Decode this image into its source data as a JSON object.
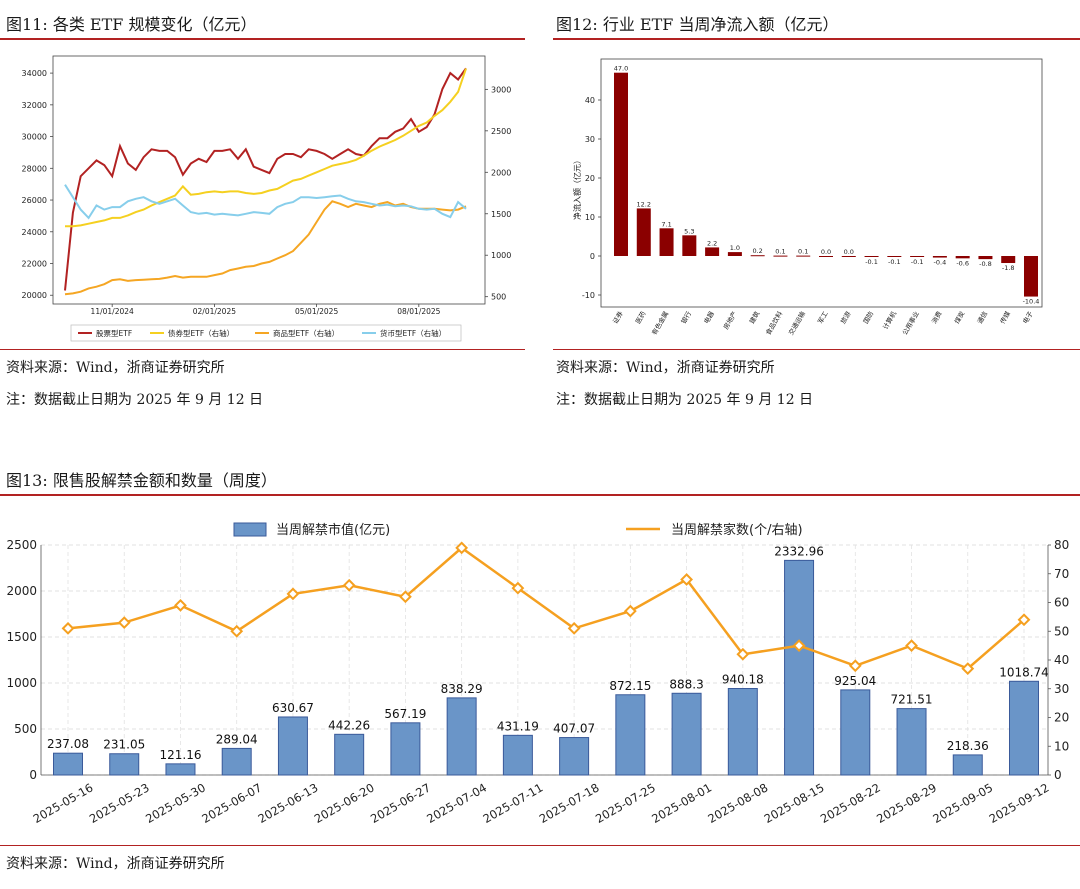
{
  "fig11": {
    "title": "图11:  各类 ETF 规模变化（亿元）",
    "source": "资料来源：Wind，浙商证券研究所",
    "note": "注：数据截止日期为 2025 年 9 月 12 日"
  },
  "fig12": {
    "title": "图12:  行业 ETF 当周净流入额（亿元）",
    "source": "资料来源：Wind，浙商证券研究所",
    "note": "注：数据截止日期为 2025 年 9 月 12 日"
  },
  "fig13": {
    "title": "图13:  限售股解禁金额和数量（周度）",
    "source": "资料来源：Wind，浙商证券研究所"
  },
  "colors": {
    "brand_red": "#b22222",
    "equity": "#b22222",
    "bond": "#f5d020",
    "commodity": "#f5a623",
    "money": "#87ceeb",
    "bar_red": "#8b0000",
    "bar_blue": "#6a95c8",
    "line_orange": "#f5a020"
  },
  "chart_data": [
    {
      "id": "fig11",
      "type": "line",
      "x": [
        "2024-09-20",
        "2024-09-27",
        "2024-10-04",
        "2024-10-11",
        "2024-10-18",
        "2024-10-25",
        "2024-11-01",
        "2024-11-08",
        "2024-11-15",
        "2024-11-22",
        "2024-11-29",
        "2024-12-06",
        "2024-12-13",
        "2024-12-20",
        "2024-12-27",
        "2025-01-03",
        "2025-01-10",
        "2025-01-17",
        "2025-01-24",
        "2025-01-31",
        "2025-02-07",
        "2025-02-14",
        "2025-02-21",
        "2025-02-28",
        "2025-03-07",
        "2025-03-14",
        "2025-03-21",
        "2025-03-28",
        "2025-04-04",
        "2025-04-11",
        "2025-04-18",
        "2025-04-25",
        "2025-05-02",
        "2025-05-09",
        "2025-05-16",
        "2025-05-23",
        "2025-05-30",
        "2025-06-06",
        "2025-06-13",
        "2025-06-20",
        "2025-06-27",
        "2025-07-04",
        "2025-07-11",
        "2025-07-18",
        "2025-07-25",
        "2025-08-01",
        "2025-08-08",
        "2025-08-15",
        "2025-08-22",
        "2025-08-29",
        "2025-09-05",
        "2025-09-12"
      ],
      "x_ticks": [
        "11/01/2024",
        "02/01/2025",
        "05/01/2025",
        "08/01/2025"
      ],
      "x_tick_index": [
        6,
        19,
        32,
        45
      ],
      "yleft_ticks": [
        "20000",
        "22000",
        "24000",
        "26000",
        "28000",
        "30000",
        "32000",
        "34000"
      ],
      "yleft_lim": [
        19700,
        34700
      ],
      "yright_ticks": [
        "500",
        "1000",
        "1500",
        "2000",
        "2500",
        "3000"
      ],
      "yright_lim": [
        460,
        3330
      ],
      "series": [
        {
          "name": "股票型ETF",
          "axis": "left",
          "values": [
            20300,
            25200,
            27500,
            28000,
            28500,
            28200,
            27500,
            29400,
            28300,
            27900,
            28700,
            29200,
            29100,
            29100,
            28700,
            27600,
            28300,
            28600,
            28400,
            29100,
            29100,
            29200,
            28600,
            29200,
            28100,
            27900,
            27700,
            28600,
            28900,
            28900,
            28700,
            29200,
            29100,
            28900,
            28600,
            28900,
            29200,
            28900,
            28800,
            29400,
            29900,
            29900,
            30300,
            30500,
            31100,
            30300,
            30600,
            31400,
            33000,
            34000,
            33600,
            34300
          ]
        },
        {
          "name": "债券型ETF（右轴）",
          "axis": "right",
          "values": [
            1350,
            1350,
            1360,
            1380,
            1400,
            1420,
            1450,
            1450,
            1480,
            1520,
            1550,
            1600,
            1640,
            1680,
            1720,
            1830,
            1730,
            1740,
            1760,
            1770,
            1760,
            1770,
            1770,
            1750,
            1740,
            1750,
            1780,
            1800,
            1850,
            1900,
            1920,
            1960,
            2000,
            2040,
            2080,
            2100,
            2120,
            2150,
            2200,
            2260,
            2310,
            2350,
            2390,
            2440,
            2500,
            2560,
            2600,
            2680,
            2750,
            2850,
            2970,
            3250
          ]
        },
        {
          "name": "商品型ETF（右轴）",
          "axis": "right",
          "values": [
            530,
            540,
            560,
            600,
            620,
            650,
            700,
            710,
            690,
            700,
            705,
            710,
            715,
            730,
            750,
            730,
            740,
            740,
            740,
            760,
            780,
            820,
            840,
            860,
            870,
            900,
            920,
            960,
            1000,
            1050,
            1150,
            1250,
            1400,
            1550,
            1650,
            1620,
            1580,
            1620,
            1600,
            1580,
            1620,
            1640,
            1600,
            1620,
            1580,
            1560,
            1560,
            1560,
            1550,
            1540,
            1550,
            1590
          ]
        },
        {
          "name": "货币型ETF（右轴）",
          "axis": "right",
          "values": [
            1850,
            1700,
            1550,
            1450,
            1600,
            1550,
            1580,
            1580,
            1650,
            1680,
            1700,
            1650,
            1620,
            1650,
            1680,
            1600,
            1520,
            1500,
            1510,
            1490,
            1500,
            1490,
            1480,
            1500,
            1520,
            1510,
            1500,
            1580,
            1620,
            1640,
            1700,
            1700,
            1690,
            1700,
            1710,
            1720,
            1680,
            1650,
            1640,
            1620,
            1600,
            1610,
            1590,
            1600,
            1590,
            1560,
            1550,
            1560,
            1500,
            1460,
            1640,
            1560
          ]
        }
      ]
    },
    {
      "id": "fig12",
      "type": "bar",
      "ylabel": "净流入额（亿元）",
      "y_ticks": [
        "-10",
        "0",
        "10",
        "20",
        "30",
        "40"
      ],
      "ylim": [
        -12,
        50
      ],
      "categories": [
        "证券",
        "医药",
        "有色金属",
        "银行",
        "电器",
        "房地产",
        "建筑",
        "食品饮料",
        "交通运输",
        "军工",
        "旅游",
        "国防",
        "计算机",
        "公用事业",
        "消费",
        "煤炭",
        "通信",
        "传媒",
        "电子"
      ],
      "values": [
        47.0,
        12.2,
        7.1,
        5.3,
        2.2,
        1.0,
        0.2,
        0.1,
        0.1,
        0.0,
        0.0,
        -0.1,
        -0.1,
        -0.1,
        -0.4,
        -0.6,
        -0.8,
        -1.8,
        -10.4
      ],
      "labels": [
        "47.0",
        "12.2",
        "7.1",
        "5.3",
        "2.2",
        "1.0",
        "0.2",
        "0.1",
        "0.1",
        "0.0",
        "0.0",
        "-0.1",
        "-0.1",
        "-0.1",
        "-0.4",
        "-0.6",
        "-0.8",
        "-1.8",
        "-10.4"
      ]
    },
    {
      "id": "fig13",
      "type": "bar",
      "categories": [
        "2025-05-16",
        "2025-05-23",
        "2025-05-30",
        "2025-06-07",
        "2025-06-13",
        "2025-06-20",
        "2025-06-27",
        "2025-07-04",
        "2025-07-11",
        "2025-07-18",
        "2025-07-25",
        "2025-08-01",
        "2025-08-08",
        "2025-08-15",
        "2025-08-22",
        "2025-08-29",
        "2025-09-05",
        "2025-09-12"
      ],
      "series": [
        {
          "name": "当周解禁市值(亿元)",
          "axis": "left",
          "values": [
            237.08,
            231.05,
            121.16,
            289.04,
            630.67,
            442.26,
            567.19,
            838.29,
            431.19,
            407.07,
            872.15,
            888.3,
            940.18,
            2332.96,
            925.04,
            721.51,
            218.36,
            1018.74
          ],
          "labels": [
            "237.08",
            "231.05",
            "121.16",
            "289.04",
            "630.67",
            "442.26",
            "567.19",
            "838.29",
            "431.19",
            "407.07",
            "872.15",
            "888.3",
            "940.18",
            "2332.96",
            "925.04",
            "721.51",
            "218.36",
            "1018.74"
          ]
        },
        {
          "name": "当周解禁家数(个/右轴)",
          "axis": "right",
          "values": [
            51,
            53,
            59,
            50,
            63,
            66,
            62,
            79,
            65,
            51,
            57,
            68,
            42,
            45,
            38,
            45,
            37,
            54
          ]
        }
      ],
      "yleft_ticks": [
        "0",
        "500",
        "1000",
        "1500",
        "2000",
        "2500"
      ],
      "yleft_lim": [
        0,
        2500
      ],
      "yright_ticks": [
        "0",
        "10",
        "20",
        "30",
        "40",
        "50",
        "60",
        "70",
        "80"
      ],
      "yright_lim": [
        0,
        80
      ]
    }
  ]
}
